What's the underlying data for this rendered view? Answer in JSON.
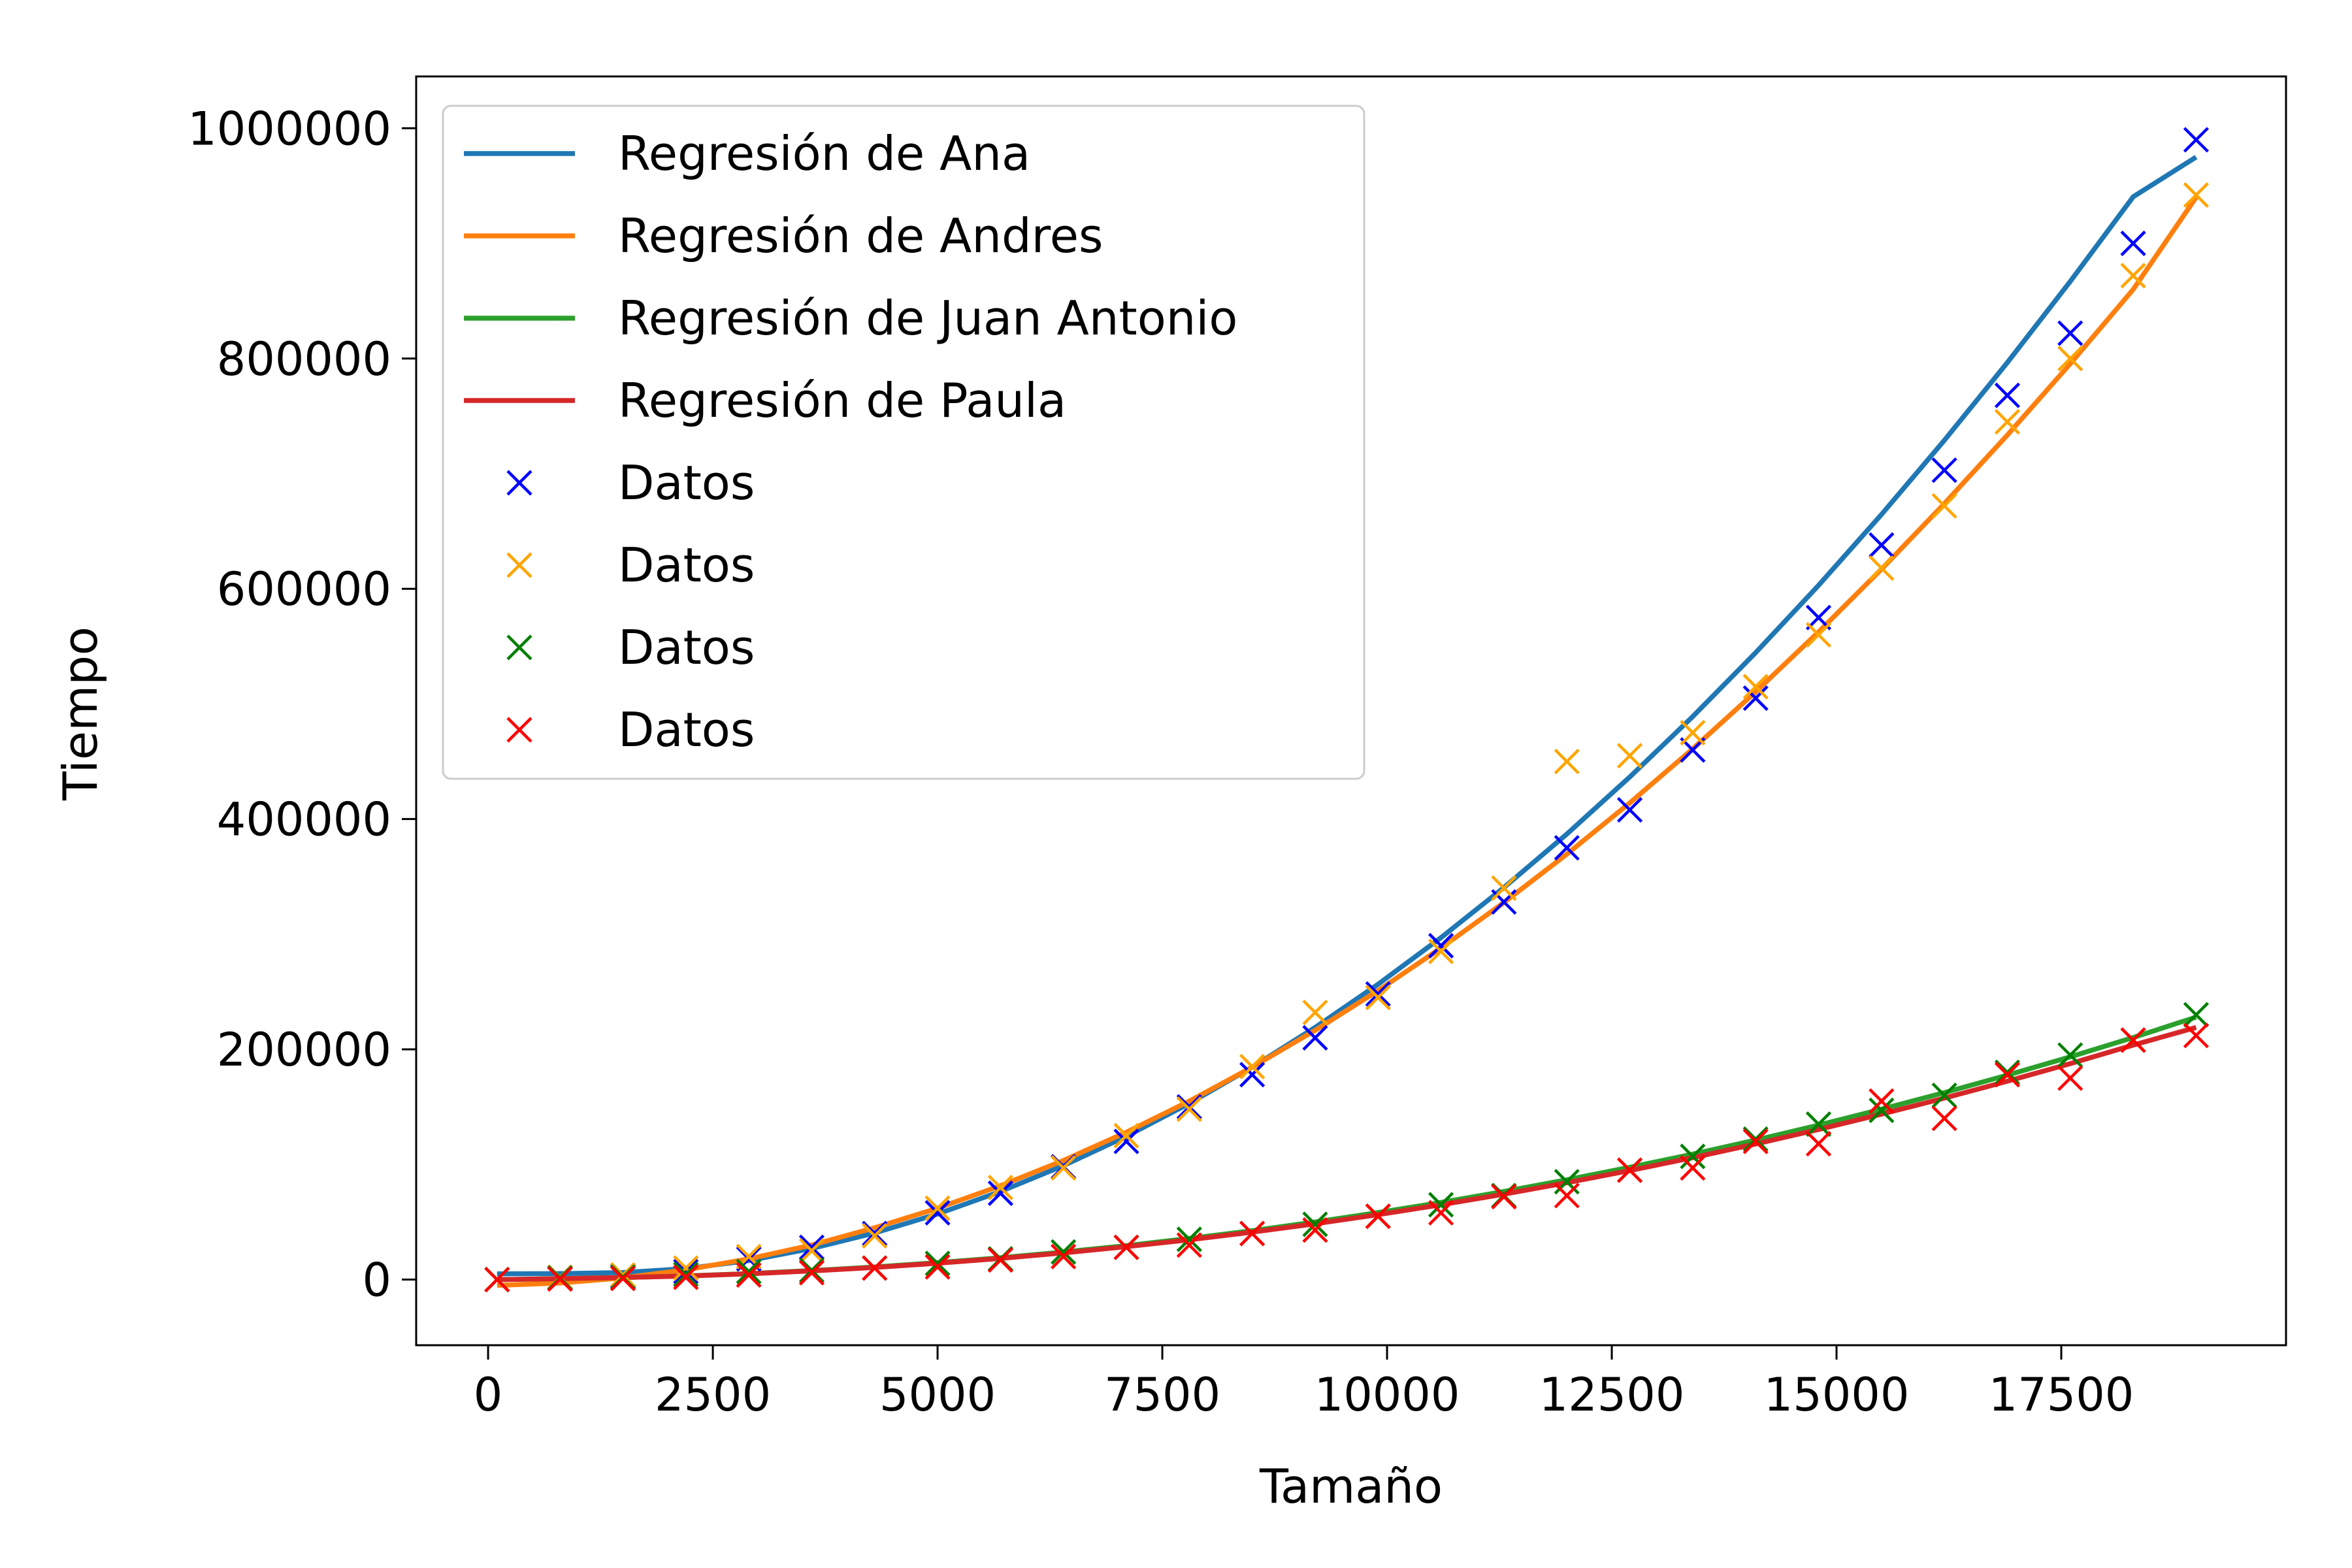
{
  "chart_data": {
    "type": "line",
    "title": "",
    "xlabel": "Tamaño",
    "ylabel": "Tiempo",
    "xlim": [
      -800,
      20000
    ],
    "ylim": [
      -57000,
      1045000
    ],
    "xticks": [
      0,
      2500,
      5000,
      7500,
      10000,
      12500,
      15000,
      17500
    ],
    "yticks": [
      0,
      200000,
      400000,
      600000,
      800000,
      1000000
    ],
    "x_tick_labels": [
      "0",
      "2500",
      "5000",
      "7500",
      "10000",
      "12500",
      "15000",
      "17500"
    ],
    "y_tick_labels": [
      "0",
      "200000",
      "400000",
      "600000",
      "800000",
      "1000000"
    ],
    "grid": false,
    "legend_position": "top-left",
    "x": [
      100,
      800,
      1500,
      2200,
      2900,
      3600,
      4300,
      5000,
      5700,
      6400,
      7100,
      7800,
      8500,
      9200,
      9900,
      10600,
      11300,
      12000,
      12700,
      13400,
      14100,
      14800,
      15500,
      16200,
      16900,
      17600,
      18300,
      19000
    ],
    "series": [
      {
        "name": "Regresión de Ana",
        "kind": "line",
        "color": "#1f77b4",
        "values": [
          5000,
          5200,
          6100,
          9500,
          16500,
          27000,
          40500,
          57000,
          76500,
          99000,
          124500,
          153000,
          184500,
          219000,
          256500,
          297000,
          340500,
          387000,
          436500,
          489000,
          544500,
          603000,
          664500,
          729000,
          796500,
          867000,
          940500,
          975000
        ]
      },
      {
        "name": "Regresión de Andres",
        "kind": "line",
        "color": "#ff7f0e",
        "values": [
          -5000,
          -3000,
          1500,
          8500,
          18000,
          30000,
          45000,
          62000,
          81500,
          103500,
          128000,
          155000,
          184500,
          216500,
          251000,
          288000,
          327500,
          369500,
          414000,
          461000,
          510500,
          562500,
          617000,
          674000,
          733500,
          795500,
          860000,
          940000
        ]
      },
      {
        "name": "Regresión de Juan Antonio",
        "kind": "line",
        "color": "#2ca02c",
        "values": [
          0,
          800,
          1800,
          3200,
          5200,
          7800,
          11000,
          14700,
          19000,
          24000,
          29500,
          35700,
          42500,
          50000,
          58200,
          67000,
          76500,
          86700,
          97500,
          109000,
          121200,
          134200,
          148000,
          162400,
          177600,
          193500,
          210200,
          228000
        ]
      },
      {
        "name": "Regresión de Paula",
        "kind": "line",
        "color": "#d62728",
        "values": [
          0,
          800,
          1800,
          3100,
          5000,
          7500,
          10500,
          14200,
          18400,
          23200,
          28600,
          34600,
          41200,
          48500,
          56400,
          65000,
          74200,
          84100,
          94700,
          105900,
          117800,
          130400,
          143700,
          157600,
          172300,
          187600,
          203700,
          219000
        ]
      },
      {
        "name": "Datos",
        "kind": "scatter",
        "color": "#0000ff",
        "values": [
          0,
          1000,
          3000,
          7000,
          18000,
          28000,
          40000,
          58000,
          75000,
          98000,
          120000,
          150000,
          178000,
          210000,
          248000,
          290000,
          328000,
          375000,
          408000,
          460000,
          505000,
          575000,
          638000,
          703000,
          768000,
          822000,
          900000,
          990000
        ]
      },
      {
        "name": "Datos",
        "kind": "scatter",
        "color": "#ffa500",
        "values": [
          0,
          2000,
          4000,
          10000,
          20000,
          25000,
          38000,
          62000,
          80000,
          97000,
          125000,
          148000,
          185000,
          232000,
          245000,
          285000,
          340000,
          450000,
          455000,
          475000,
          515000,
          560000,
          618000,
          672000,
          745000,
          800000,
          872000,
          942000
        ]
      },
      {
        "name": "Datos",
        "kind": "scatter",
        "color": "#008000",
        "values": [
          0,
          1500,
          2000,
          4500,
          7000,
          8000,
          10000,
          14000,
          18000,
          24000,
          28000,
          35000,
          40000,
          48000,
          55000,
          65000,
          73000,
          85000,
          95000,
          107000,
          122000,
          135000,
          147000,
          160000,
          180000,
          195000,
          208000,
          230000
        ]
      },
      {
        "name": "Datos",
        "kind": "scatter",
        "color": "#ff0000",
        "values": [
          0,
          500,
          1000,
          2000,
          4000,
          6000,
          10000,
          11000,
          17000,
          20000,
          28000,
          30000,
          40000,
          43000,
          55000,
          58000,
          72000,
          73000,
          95000,
          97000,
          120000,
          118000,
          155000,
          140000,
          178000,
          175000,
          208000,
          212000
        ]
      }
    ]
  }
}
